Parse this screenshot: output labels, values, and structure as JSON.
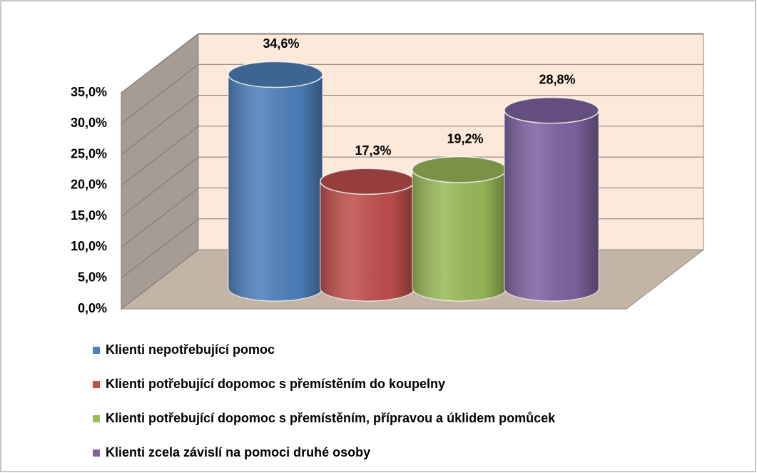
{
  "chart_data": {
    "type": "bar",
    "categories": [
      null
    ],
    "series": [
      {
        "name": "Klienti nepotřebující pomoc",
        "color": "#4f81bd",
        "values": [
          34.6
        ],
        "value_labels": [
          "34,6%"
        ]
      },
      {
        "name": "Klienti potřebující dopomoc s přemístěním do koupelny",
        "color": "#c0504d",
        "values": [
          17.3
        ],
        "value_labels": [
          "17,3%"
        ]
      },
      {
        "name": "Klienti potřebující dopomoc s přemístěním, přípravou a úklidem pomůcek",
        "color": "#9bbb59",
        "values": [
          19.2
        ],
        "value_labels": [
          "19,2%"
        ]
      },
      {
        "name": "Klienti zcela závislí na pomoci druhé osoby",
        "color": "#8064a2",
        "values": [
          28.8
        ],
        "value_labels": [
          "28,8%"
        ]
      }
    ],
    "ylim": [
      0,
      35
    ],
    "yticks": [
      {
        "value": 0,
        "label": "0,0%"
      },
      {
        "value": 5,
        "label": "5,0%"
      },
      {
        "value": 10,
        "label": "10,0%"
      },
      {
        "value": 15,
        "label": "15,0%"
      },
      {
        "value": 20,
        "label": "20,0%"
      },
      {
        "value": 25,
        "label": "25,0%"
      },
      {
        "value": 30,
        "label": "30,0%"
      },
      {
        "value": 35,
        "label": "35,0%"
      }
    ],
    "grid": true,
    "legend": "bottom"
  }
}
